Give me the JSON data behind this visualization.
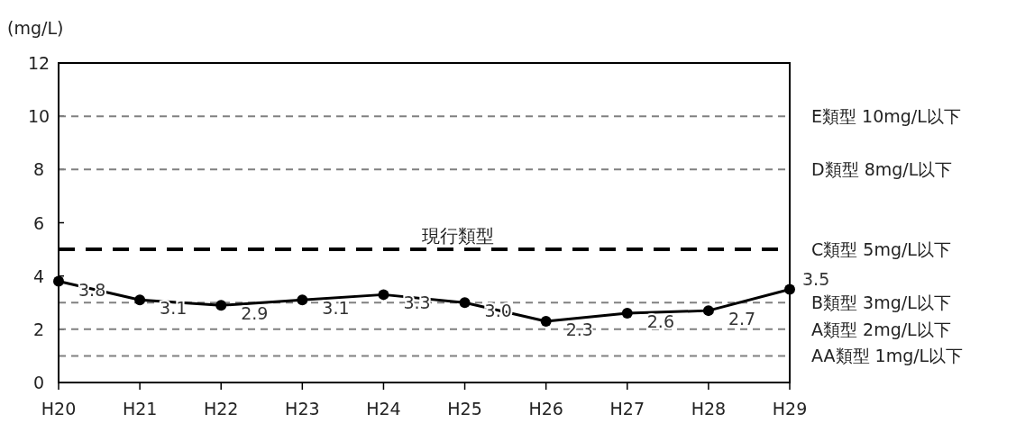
{
  "chart_data": {
    "type": "line",
    "ylabel": "(mg/L)",
    "categories": [
      "H20",
      "H21",
      "H22",
      "H23",
      "H24",
      "H25",
      "H26",
      "H27",
      "H28",
      "H29"
    ],
    "series": [
      {
        "color": "#000000",
        "values": [
          3.8,
          3.1,
          2.9,
          3.1,
          3.3,
          3.0,
          2.3,
          2.6,
          2.7,
          3.5
        ],
        "value_labels": [
          "3.8",
          "3.1",
          "2.9",
          "3.1",
          "3.3",
          "3.0",
          "2.3",
          "2.6",
          "2.7",
          "3.5"
        ]
      }
    ],
    "ylim": [
      0,
      12
    ],
    "yticks": [
      0,
      2,
      4,
      6,
      8,
      10,
      12
    ],
    "marker": "circle",
    "line_style": "solid",
    "ref_lines": [
      {
        "axis": "y",
        "value": 10,
        "label": "E類型 10mg/L以下",
        "color": "#808080",
        "line_style": "dashed"
      },
      {
        "axis": "y",
        "value": 8,
        "label": "D類型 8mg/L以下",
        "color": "#808080",
        "line_style": "dashed"
      },
      {
        "axis": "y",
        "value": 5,
        "label": "C類型 5mg/L以下",
        "color": "#000000",
        "line_style": "dashed"
      },
      {
        "axis": "y",
        "value": 3,
        "label": "B類型 3mg/L以下",
        "color": "#808080",
        "line_style": "dashed"
      },
      {
        "axis": "y",
        "value": 2,
        "label": "A類型 2mg/L以下",
        "color": "#808080",
        "line_style": "dashed"
      },
      {
        "axis": "y",
        "value": 1,
        "label": "AA類型 1mg/L以下",
        "color": "#808080",
        "line_style": "dashed"
      }
    ],
    "annotations": [
      {
        "text": "現行類型",
        "x": "H25",
        "y": 5
      }
    ]
  }
}
